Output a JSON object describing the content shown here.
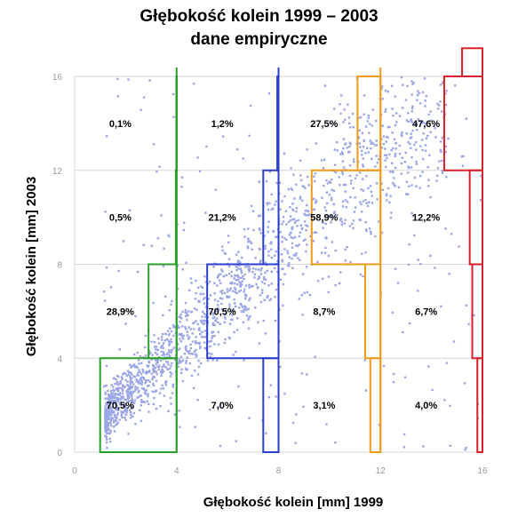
{
  "chart_data": {
    "type": "scatter",
    "title": "Głębokość kolein 1999 – 2003",
    "subtitle": "dane empiryczne",
    "xlabel": "Głębokość kolein [mm] 1999",
    "ylabel": "Głębokość kolein [mm] 2003",
    "xlim": [
      0,
      16
    ],
    "ylim": [
      0,
      16
    ],
    "x_ticks": [
      "0",
      "4",
      "8",
      "12",
      "16"
    ],
    "y_ticks": [
      "0",
      "4",
      "8",
      "12",
      "16"
    ],
    "grid": true,
    "point_color": "#9aa6e6",
    "class_boundaries_1999": [
      {
        "x": 4,
        "color": "#2aa02a"
      },
      {
        "x": 8,
        "color": "#2a3fcf"
      },
      {
        "x": 12,
        "color": "#f29a1a"
      },
      {
        "x": 16,
        "color": "#d9202a"
      }
    ],
    "percentages": [
      {
        "label": "0,1%",
        "x": 2,
        "y": 14
      },
      {
        "label": "1,2%",
        "x": 6,
        "y": 14
      },
      {
        "label": "27,5%",
        "x": 10,
        "y": 14
      },
      {
        "label": "47,6%",
        "x": 14,
        "y": 14
      },
      {
        "label": "0,5%",
        "x": 2,
        "y": 10
      },
      {
        "label": "21,2%",
        "x": 6,
        "y": 10
      },
      {
        "label": "58,9%",
        "x": 10,
        "y": 10
      },
      {
        "label": "12,2%",
        "x": 14,
        "y": 10
      },
      {
        "label": "28,9%",
        "x": 2,
        "y": 6
      },
      {
        "label": "70,5%",
        "x": 6,
        "y": 6
      },
      {
        "label": "8,7%",
        "x": 10,
        "y": 6
      },
      {
        "label": "6,7%",
        "x": 14,
        "y": 6
      },
      {
        "label": "70,5%",
        "x": 2,
        "y": 2
      },
      {
        "label": "7,0%",
        "x": 6,
        "y": 2
      },
      {
        "label": "3,1%",
        "x": 10,
        "y": 2
      },
      {
        "label": "4,0%",
        "x": 14,
        "y": 2
      }
    ],
    "bars": [
      {
        "series": "green",
        "color": "#2aa02a",
        "x0": 1.0,
        "x1": 4.0,
        "y0": 0,
        "y1": 4
      },
      {
        "series": "green",
        "color": "#2aa02a",
        "x0": 2.9,
        "x1": 4.0,
        "y0": 4,
        "y1": 8
      },
      {
        "series": "green",
        "color": "#2aa02a",
        "x0": 3.97,
        "x1": 4.0,
        "y0": 8,
        "y1": 12
      },
      {
        "series": "green",
        "color": "#2aa02a",
        "x0": 3.99,
        "x1": 4.0,
        "y0": 12,
        "y1": 16
      },
      {
        "series": "blue",
        "color": "#2a3fcf",
        "x0": 7.4,
        "x1": 8.0,
        "y0": 0,
        "y1": 4
      },
      {
        "series": "blue",
        "color": "#2a3fcf",
        "x0": 5.2,
        "x1": 8.0,
        "y0": 4,
        "y1": 8
      },
      {
        "series": "blue",
        "color": "#2a3fcf",
        "x0": 7.4,
        "x1": 8.0,
        "y0": 8,
        "y1": 12
      },
      {
        "series": "blue",
        "color": "#2a3fcf",
        "x0": 7.95,
        "x1": 8.0,
        "y0": 12,
        "y1": 16
      },
      {
        "series": "orange",
        "color": "#f29a1a",
        "x0": 11.6,
        "x1": 12.0,
        "y0": 0,
        "y1": 4
      },
      {
        "series": "orange",
        "color": "#f29a1a",
        "x0": 11.4,
        "x1": 12.0,
        "y0": 4,
        "y1": 8
      },
      {
        "series": "orange",
        "color": "#f29a1a",
        "x0": 9.3,
        "x1": 12.0,
        "y0": 8,
        "y1": 12
      },
      {
        "series": "orange",
        "color": "#f29a1a",
        "x0": 11.1,
        "x1": 12.0,
        "y0": 12,
        "y1": 16
      },
      {
        "series": "red",
        "color": "#d9202a",
        "x0": 15.8,
        "x1": 16.0,
        "y0": 0,
        "y1": 4
      },
      {
        "series": "red",
        "color": "#d9202a",
        "x0": 15.6,
        "x1": 16.0,
        "y0": 4,
        "y1": 8
      },
      {
        "series": "red",
        "color": "#d9202a",
        "x0": 15.5,
        "x1": 16.0,
        "y0": 8,
        "y1": 12
      },
      {
        "series": "red",
        "color": "#d9202a",
        "x0": 14.5,
        "x1": 16.0,
        "y0": 12,
        "y1": 16
      },
      {
        "series": "red",
        "color": "#d9202a",
        "x0": 15.2,
        "x1": 16.0,
        "y0": 16,
        "y1": 17.2
      }
    ]
  }
}
